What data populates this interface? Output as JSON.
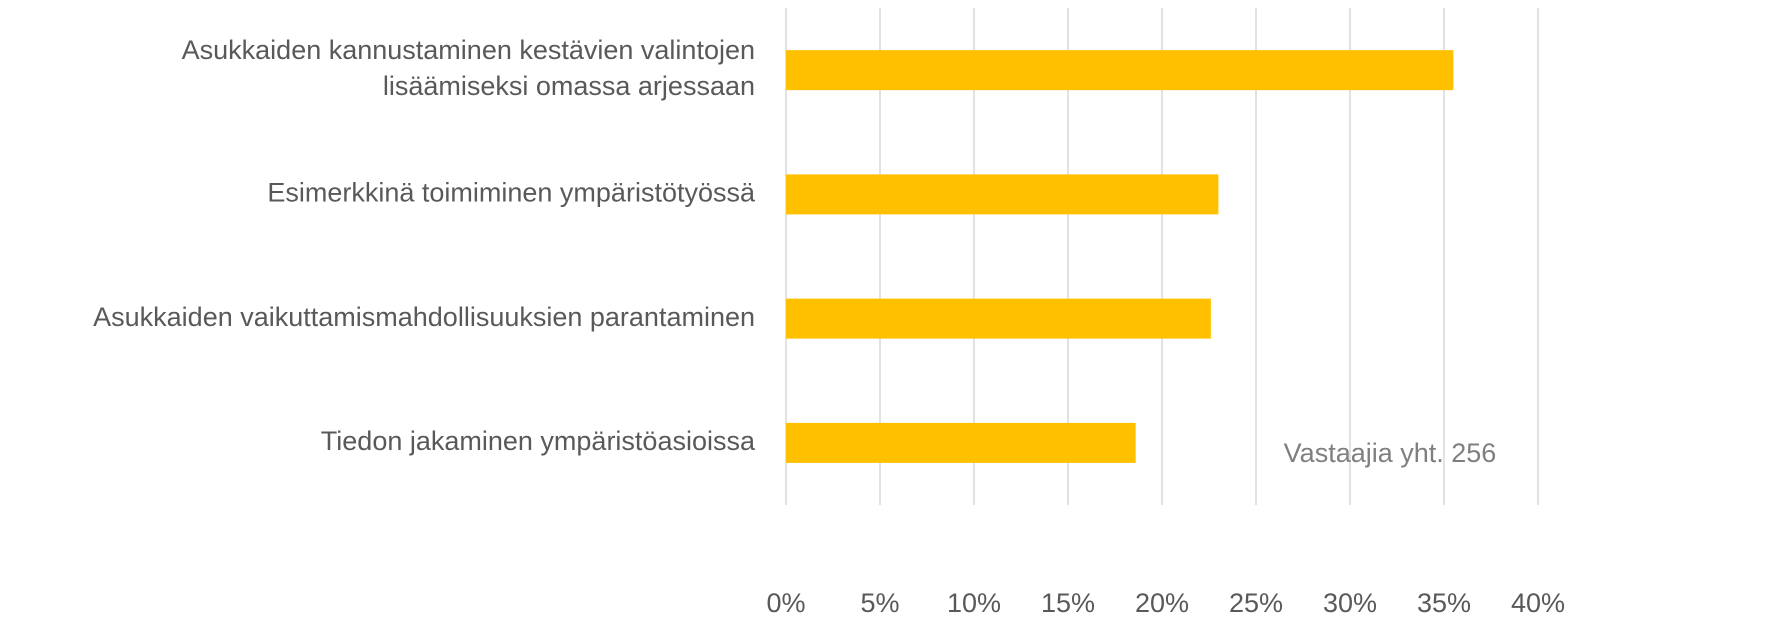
{
  "chart_data": {
    "type": "bar",
    "orientation": "horizontal",
    "categories": [
      "Asukkaiden kannustaminen kestävien valintojen\nlisäämiseksi omassa arjessaan",
      "Esimerkkinä toimiminen ympäristötyössä",
      "Asukkaiden vaikuttamismahdollisuuksien parantaminen",
      "Tiedon jakaminen ympäristöasioissa"
    ],
    "values": [
      35.5,
      23.0,
      22.6,
      18.6
    ],
    "color": "#ffc000",
    "xlim": [
      0,
      40
    ],
    "xticks": [
      {
        "value": 0,
        "label": "0%"
      },
      {
        "value": 5,
        "label": "5%"
      },
      {
        "value": 10,
        "label": "10%"
      },
      {
        "value": 15,
        "label": "15%"
      },
      {
        "value": 20,
        "label": "20%"
      },
      {
        "value": 25,
        "label": "25%"
      },
      {
        "value": 30,
        "label": "30%"
      },
      {
        "value": 35,
        "label": "35%"
      },
      {
        "value": 40,
        "label": "40%"
      }
    ],
    "grid": true,
    "annotation": "Vastaajia yht. 256"
  }
}
